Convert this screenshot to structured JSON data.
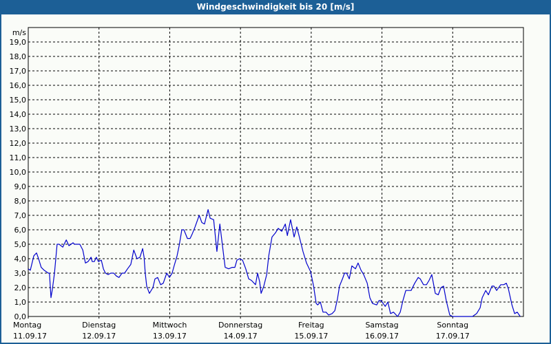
{
  "window": {
    "title": "Windgeschwindigkeit bis 20 [m/s]"
  },
  "axis": {
    "y_unit_label": "m/s",
    "y_ticks": [
      "0,0",
      "1,0",
      "2,0",
      "3,0",
      "4,0",
      "5,0",
      "6,0",
      "7,0",
      "8,0",
      "9,0",
      "10,0",
      "11,0",
      "12,0",
      "13,0",
      "14,0",
      "15,0",
      "16,0",
      "17,0",
      "18,0",
      "19,0"
    ],
    "x_days": [
      {
        "day": "Montag",
        "date": "11.09.17"
      },
      {
        "day": "Dienstag",
        "date": "12.09.17"
      },
      {
        "day": "Mittwoch",
        "date": "13.09.17"
      },
      {
        "day": "Donnerstag",
        "date": "14.09.17"
      },
      {
        "day": "Freitag",
        "date": "15.09.17"
      },
      {
        "day": "Samstag",
        "date": "16.09.17"
      },
      {
        "day": "Sonntag",
        "date": "17.09.17"
      }
    ]
  },
  "colors": {
    "title_bar": "#1c5f96",
    "line": "#0000cc",
    "grid": "#000000",
    "background": "#fafcf8"
  },
  "chart_data": {
    "type": "line",
    "title": "Windgeschwindigkeit bis 20 [m/s]",
    "xlabel": "",
    "ylabel": "m/s",
    "ylim": [
      0,
      20
    ],
    "xlim_hours": [
      0,
      168
    ],
    "grid": true,
    "categories": [
      "Montag 11.09.17",
      "Dienstag 12.09.17",
      "Mittwoch 13.09.17",
      "Donnerstag 14.09.17",
      "Freitag 15.09.17",
      "Samstag 16.09.17",
      "Sonntag 17.09.17"
    ],
    "series": [
      {
        "name": "Windgeschwindigkeit",
        "x_unit": "hours since Montag 11.09.17 00:00",
        "points": [
          [
            0,
            3.3
          ],
          [
            0.7,
            3.2
          ],
          [
            1.9,
            4.2
          ],
          [
            2.8,
            4.4
          ],
          [
            3.5,
            4.0
          ],
          [
            4.4,
            3.4
          ],
          [
            5.4,
            3.2
          ],
          [
            6.8,
            3.0
          ],
          [
            7.2,
            3.0
          ],
          [
            7.5,
            2.0
          ],
          [
            7.7,
            1.3
          ],
          [
            8.2,
            1.9
          ],
          [
            8.9,
            3.0
          ],
          [
            9.8,
            5.0
          ],
          [
            10.5,
            5.0
          ],
          [
            11.7,
            4.8
          ],
          [
            12.9,
            5.3
          ],
          [
            13.8,
            4.9
          ],
          [
            15.2,
            5.1
          ],
          [
            15.7,
            5.0
          ],
          [
            16.8,
            5.0
          ],
          [
            17.5,
            5.0
          ],
          [
            18.5,
            4.6
          ],
          [
            19.4,
            3.7
          ],
          [
            20.3,
            3.8
          ],
          [
            21.3,
            4.1
          ],
          [
            21.7,
            3.8
          ],
          [
            22.4,
            3.8
          ],
          [
            23.1,
            4.1
          ],
          [
            23.8,
            3.8
          ],
          [
            24.8,
            3.9
          ],
          [
            25.5,
            3.3
          ],
          [
            26.2,
            3.0
          ],
          [
            27.1,
            2.9
          ],
          [
            28.0,
            3.0
          ],
          [
            29.0,
            3.0
          ],
          [
            29.9,
            2.8
          ],
          [
            30.8,
            2.7
          ],
          [
            31.8,
            3.0
          ],
          [
            32.7,
            3.0
          ],
          [
            33.7,
            3.3
          ],
          [
            34.8,
            3.6
          ],
          [
            35.8,
            4.6
          ],
          [
            36.9,
            4.0
          ],
          [
            37.9,
            4.1
          ],
          [
            38.8,
            4.7
          ],
          [
            39.3,
            4.1
          ],
          [
            39.7,
            3.0
          ],
          [
            40.2,
            2.1
          ],
          [
            41.1,
            1.6
          ],
          [
            42.3,
            2.0
          ],
          [
            43.0,
            2.6
          ],
          [
            43.9,
            2.7
          ],
          [
            44.9,
            2.2
          ],
          [
            45.8,
            2.3
          ],
          [
            47.0,
            3.0
          ],
          [
            47.9,
            2.7
          ],
          [
            48.8,
            3.0
          ],
          [
            49.5,
            3.5
          ],
          [
            50.5,
            4.2
          ],
          [
            51.2,
            4.9
          ],
          [
            52.1,
            6.0
          ],
          [
            52.8,
            6.0
          ],
          [
            54.0,
            5.4
          ],
          [
            54.9,
            5.4
          ],
          [
            55.6,
            5.7
          ],
          [
            56.6,
            6.2
          ],
          [
            58.0,
            7.0
          ],
          [
            58.9,
            6.5
          ],
          [
            59.8,
            6.4
          ],
          [
            61.0,
            7.4
          ],
          [
            61.7,
            6.8
          ],
          [
            62.9,
            6.7
          ],
          [
            63.6,
            5.3
          ],
          [
            64.0,
            4.5
          ],
          [
            65.0,
            6.4
          ],
          [
            65.9,
            4.9
          ],
          [
            66.8,
            3.4
          ],
          [
            68.0,
            3.3
          ],
          [
            69.2,
            3.4
          ],
          [
            70.1,
            3.4
          ],
          [
            70.8,
            3.9
          ],
          [
            71.7,
            4.0
          ],
          [
            72.7,
            3.9
          ],
          [
            73.8,
            3.3
          ],
          [
            74.8,
            2.6
          ],
          [
            75.7,
            2.5
          ],
          [
            77.1,
            2.2
          ],
          [
            77.8,
            3.0
          ],
          [
            78.5,
            2.4
          ],
          [
            79.0,
            1.6
          ],
          [
            79.9,
            2.1
          ],
          [
            80.9,
            2.9
          ],
          [
            81.6,
            4.2
          ],
          [
            82.7,
            5.5
          ],
          [
            83.9,
            5.8
          ],
          [
            84.8,
            6.1
          ],
          [
            86.0,
            5.9
          ],
          [
            87.2,
            6.4
          ],
          [
            87.9,
            5.6
          ],
          [
            89.0,
            6.7
          ],
          [
            90.2,
            5.5
          ],
          [
            91.1,
            6.2
          ],
          [
            92.1,
            5.4
          ],
          [
            93.2,
            4.5
          ],
          [
            94.4,
            3.7
          ],
          [
            95.8,
            3.1
          ],
          [
            96.8,
            2.1
          ],
          [
            97.7,
            0.9
          ],
          [
            98.2,
            0.8
          ],
          [
            99.1,
            1.0
          ],
          [
            100.0,
            0.3
          ],
          [
            101.0,
            0.3
          ],
          [
            101.9,
            0.1
          ],
          [
            103.1,
            0.2
          ],
          [
            104.0,
            0.4
          ],
          [
            104.9,
            1.2
          ],
          [
            105.6,
            2.1
          ],
          [
            106.6,
            2.6
          ],
          [
            107.3,
            3.0
          ],
          [
            108.0,
            3.0
          ],
          [
            108.9,
            2.6
          ],
          [
            109.8,
            3.5
          ],
          [
            111.0,
            3.3
          ],
          [
            111.9,
            3.7
          ],
          [
            112.9,
            3.2
          ],
          [
            113.8,
            2.9
          ],
          [
            115.0,
            2.3
          ],
          [
            115.9,
            1.3
          ],
          [
            116.8,
            0.9
          ],
          [
            118.2,
            0.8
          ],
          [
            119.0,
            1.1
          ],
          [
            119.7,
            1.1
          ],
          [
            121.1,
            0.7
          ],
          [
            122.0,
            1.0
          ],
          [
            122.9,
            0.2
          ],
          [
            123.9,
            0.3
          ],
          [
            125.3,
            0.0
          ],
          [
            126.2,
            0.3
          ],
          [
            127.1,
            1.1
          ],
          [
            128.1,
            1.8
          ],
          [
            129.9,
            1.8
          ],
          [
            131.1,
            2.3
          ],
          [
            132.3,
            2.7
          ],
          [
            133.0,
            2.6
          ],
          [
            134.1,
            2.2
          ],
          [
            135.1,
            2.2
          ],
          [
            136.0,
            2.5
          ],
          [
            136.9,
            2.9
          ],
          [
            138.1,
            1.6
          ],
          [
            139.1,
            1.5
          ],
          [
            140.0,
            2.0
          ],
          [
            140.9,
            2.1
          ],
          [
            141.8,
            1.1
          ],
          [
            143.0,
            0.1
          ],
          [
            144.0,
            0.0
          ],
          [
            150.7,
            0.0
          ],
          [
            152.1,
            0.2
          ],
          [
            153.3,
            0.6
          ],
          [
            154.0,
            1.3
          ],
          [
            155.2,
            1.8
          ],
          [
            156.1,
            1.5
          ],
          [
            157.3,
            2.1
          ],
          [
            158.0,
            2.1
          ],
          [
            158.9,
            1.8
          ],
          [
            160.3,
            2.2
          ],
          [
            161.3,
            2.2
          ],
          [
            162.2,
            2.3
          ],
          [
            162.9,
            1.9
          ],
          [
            164.1,
            0.8
          ],
          [
            165.0,
            0.2
          ],
          [
            165.9,
            0.3
          ],
          [
            166.9,
            0.0
          ]
        ]
      }
    ]
  }
}
